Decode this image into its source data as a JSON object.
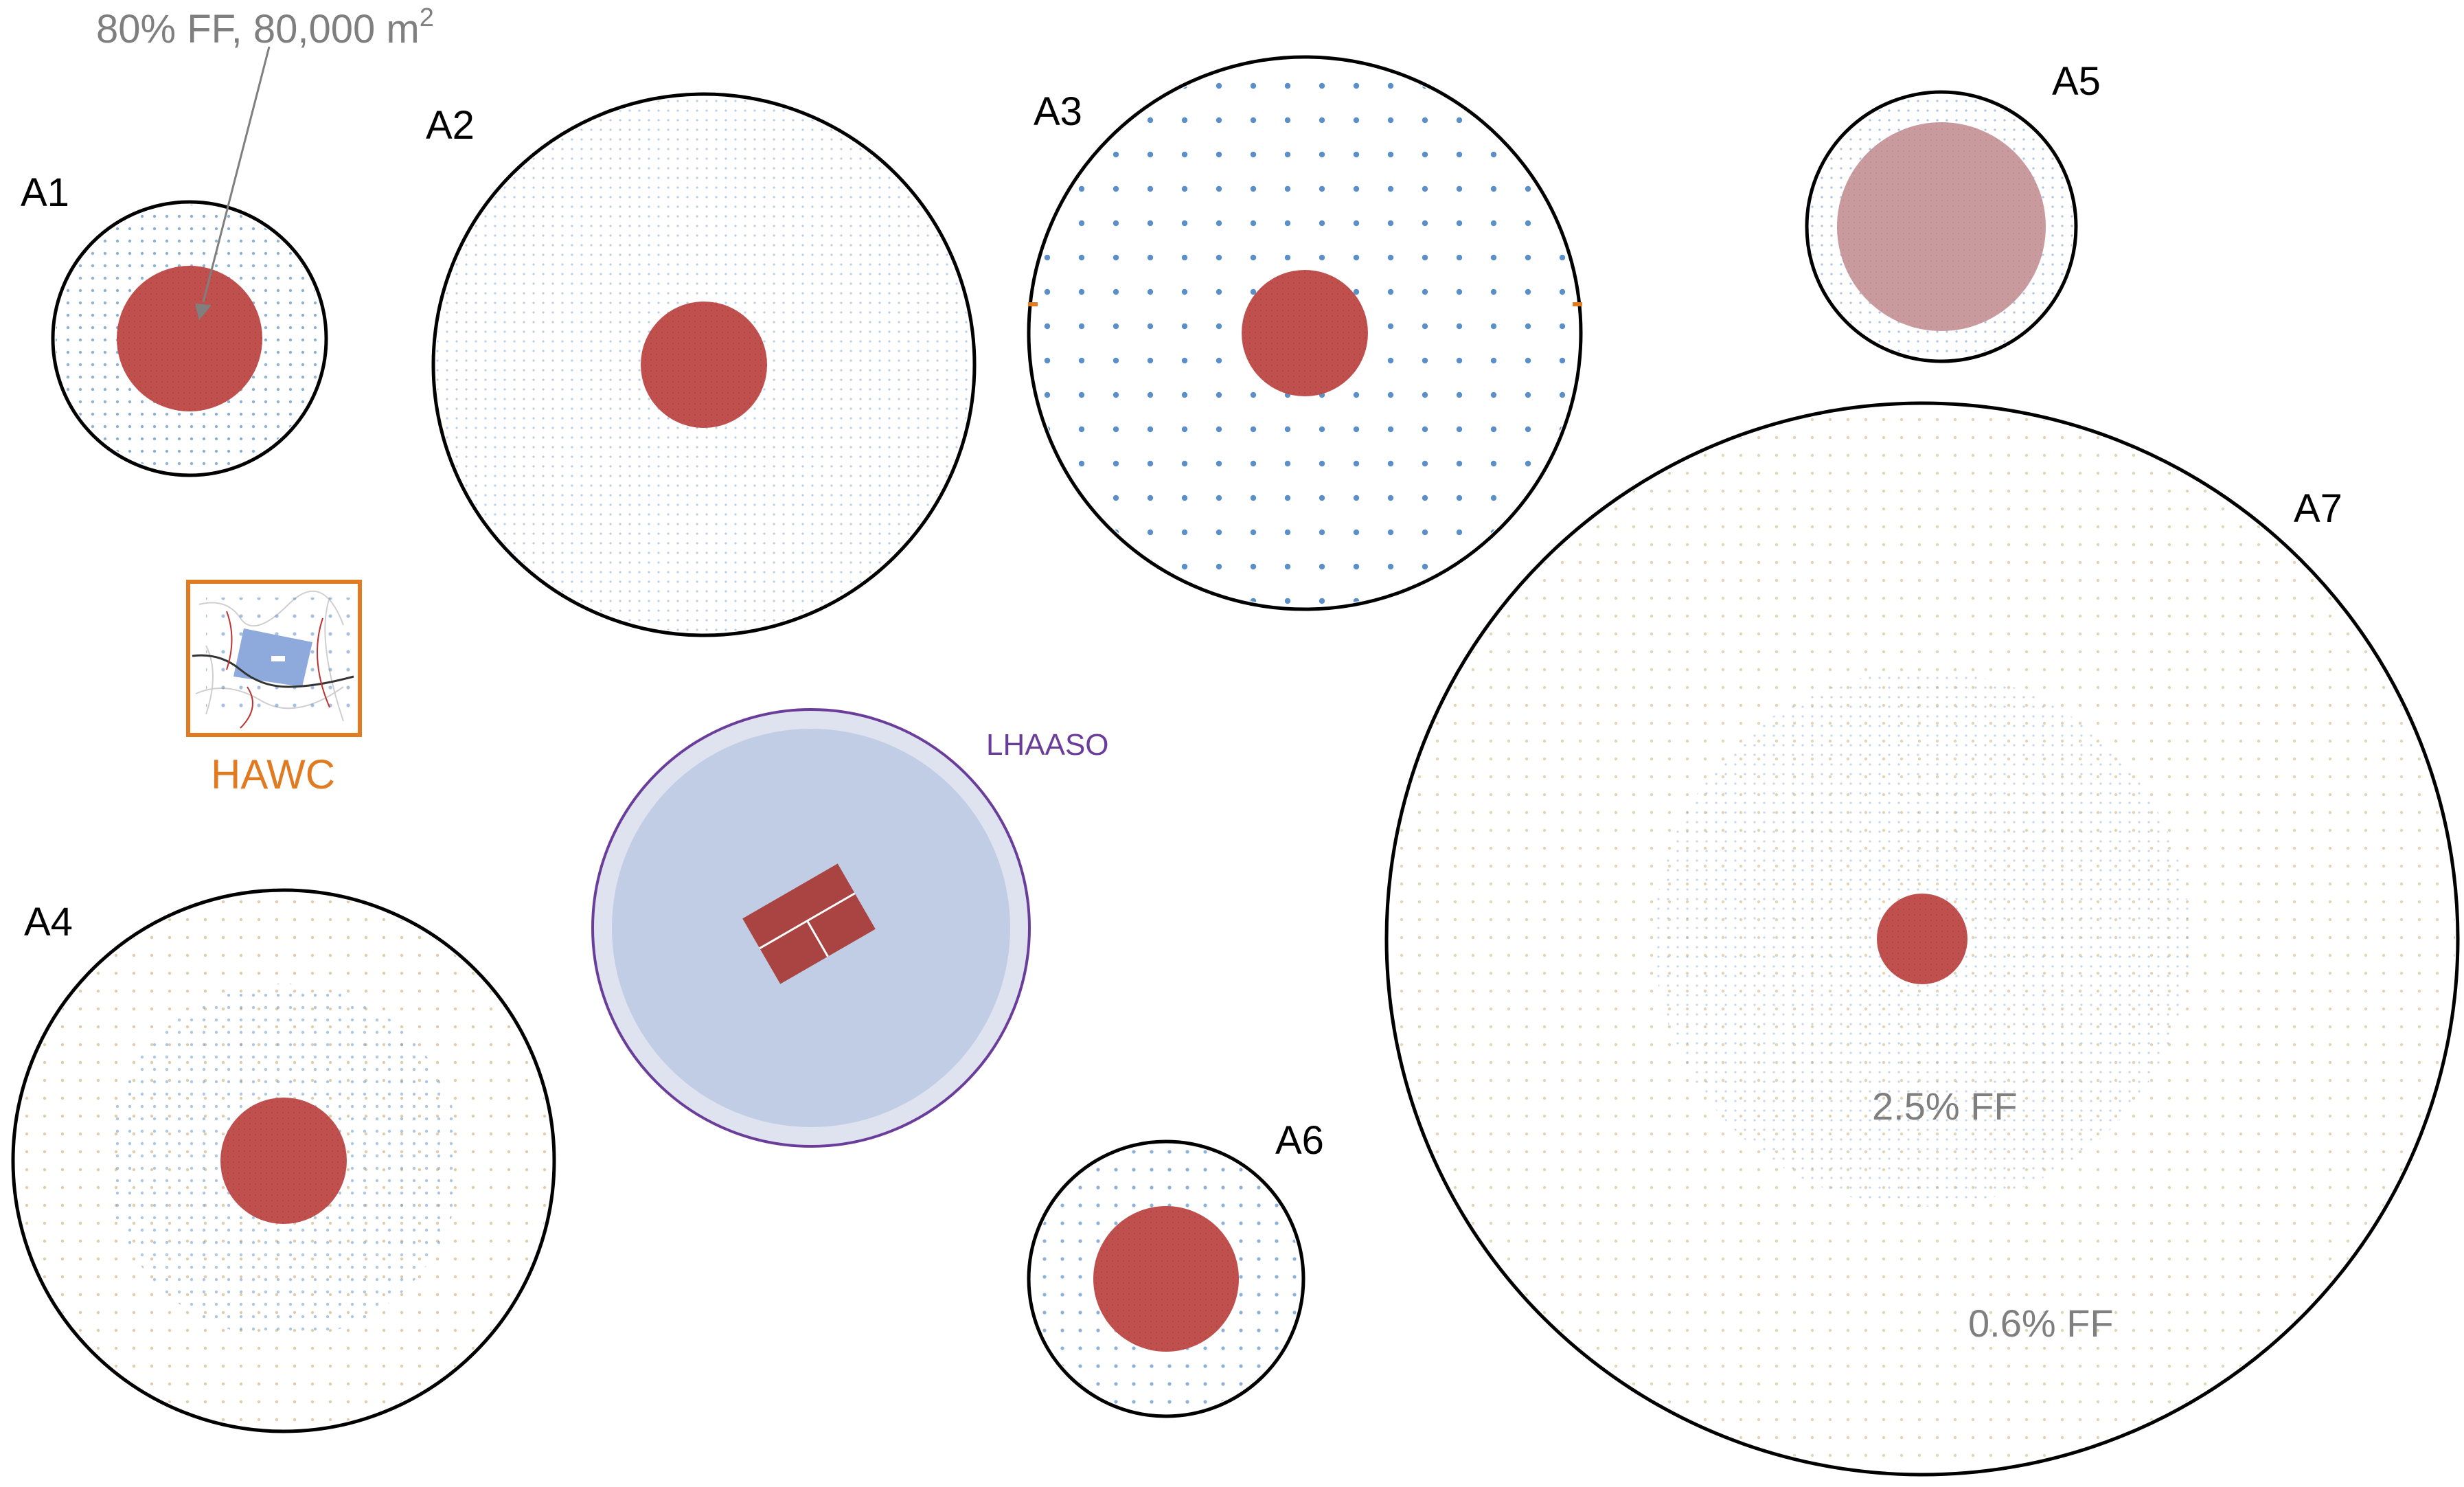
{
  "annotation": {
    "text_main": "80% FF, 80,000 m",
    "text_sup": "2"
  },
  "layouts": [
    {
      "id": "A1",
      "label": "A1"
    },
    {
      "id": "A2",
      "label": "A2"
    },
    {
      "id": "A3",
      "label": "A3"
    },
    {
      "id": "A4",
      "label": "A4"
    },
    {
      "id": "A5",
      "label": "A5"
    },
    {
      "id": "A6",
      "label": "A6"
    },
    {
      "id": "A7",
      "label": "A7"
    }
  ],
  "reference": {
    "hawc": {
      "label": "HAWC"
    },
    "lhaaso": {
      "label": "LHAASO"
    }
  },
  "a7_zones": {
    "inner_label": "2.5% FF",
    "outer_label": "0.6% FF"
  },
  "colors": {
    "core": "#c0504d",
    "core_light": "#c99a9e",
    "outline": "#000000",
    "dot_blue": "#5b8fc9",
    "dot_tan": "#d9c59a",
    "hawc": "#e07b22",
    "lhaaso_ring": "#6a3d9a",
    "lhaaso_fill": "#c1cde4",
    "lhaaso_outer": "#dfe3f0",
    "lhaaso_core": "#a94442",
    "grey_text": "#7f7f7f"
  }
}
